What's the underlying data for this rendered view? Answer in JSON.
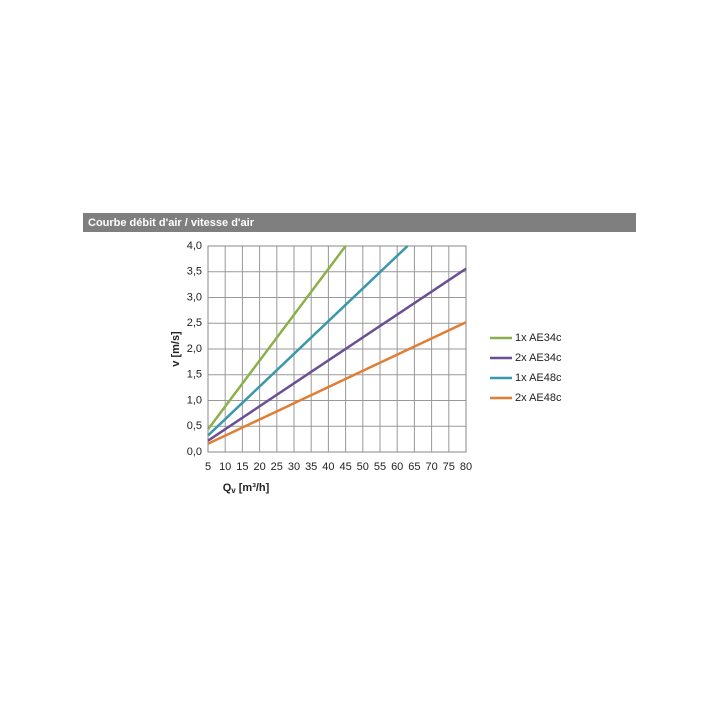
{
  "header": {
    "title": "Courbe débit d'air / vitesse d'air"
  },
  "chart_data": {
    "type": "line",
    "x_label": {
      "main": "Q",
      "sub": "v",
      "rest": " [m³/h]"
    },
    "y_label": "v [m/s]",
    "xlim": [
      5,
      80
    ],
    "xticks": [
      5,
      10,
      15,
      20,
      25,
      30,
      35,
      40,
      45,
      50,
      55,
      60,
      65,
      70,
      75,
      80
    ],
    "ylim": [
      0,
      4
    ],
    "yticks": [
      {
        "value": 0,
        "label": "0,0"
      },
      {
        "value": 0.5,
        "label": "0,5"
      },
      {
        "value": 1,
        "label": "1,0"
      },
      {
        "value": 1.5,
        "label": "1,5"
      },
      {
        "value": 2,
        "label": "2,0"
      },
      {
        "value": 2.5,
        "label": "2,5"
      },
      {
        "value": 3,
        "label": "3,0"
      },
      {
        "value": 3.5,
        "label": "3,5"
      },
      {
        "value": 4,
        "label": "4,0"
      }
    ],
    "grid": true,
    "legend": "right",
    "series": [
      {
        "name": "1x AE34c",
        "color": "#8cb04a",
        "x": [
          5,
          45
        ],
        "values": [
          0.44,
          4.0
        ]
      },
      {
        "name": "2x AE34c",
        "color": "#6a4f94",
        "x": [
          5,
          80
        ],
        "values": [
          0.22,
          3.56
        ]
      },
      {
        "name": "1x AE48c",
        "color": "#3a97ac",
        "x": [
          5,
          63
        ],
        "values": [
          0.32,
          4.0
        ]
      },
      {
        "name": "2x AE48c",
        "color": "#e07e35",
        "x": [
          5,
          80
        ],
        "values": [
          0.16,
          2.52
        ]
      }
    ]
  }
}
